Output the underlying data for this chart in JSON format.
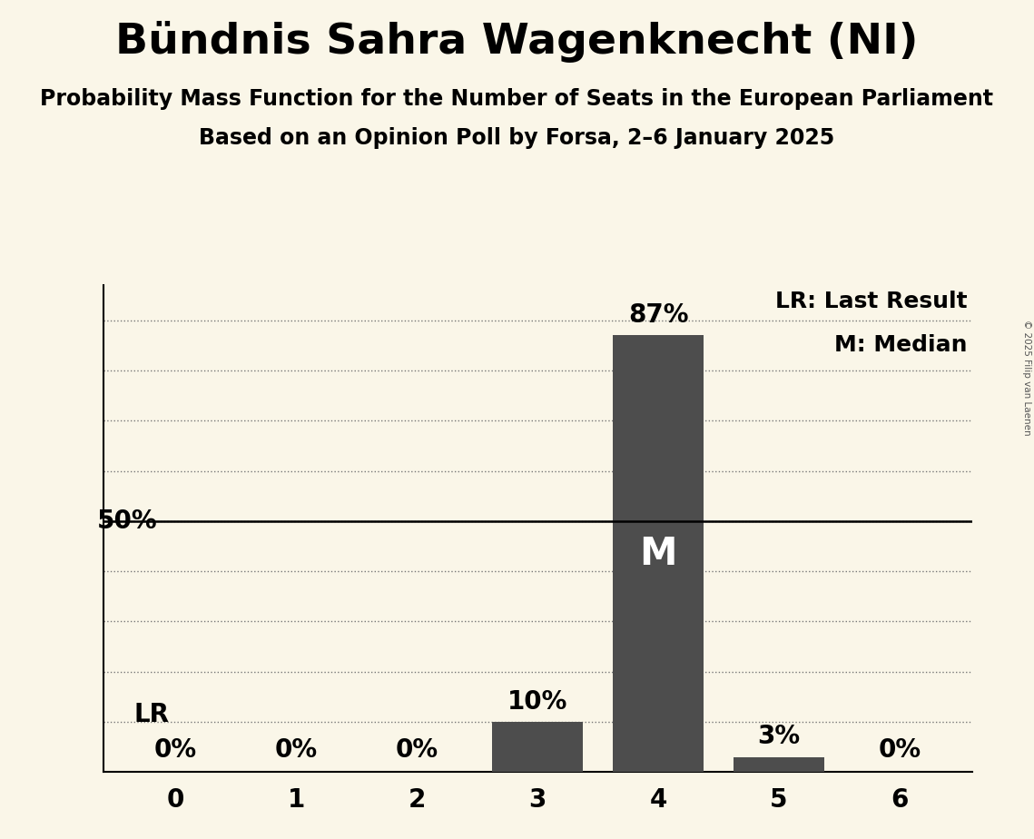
{
  "title": "Bündnis Sahra Wagenknecht (NI)",
  "subtitle1": "Probability Mass Function for the Number of Seats in the European Parliament",
  "subtitle2": "Based on an Opinion Poll by Forsa, 2–6 January 2025",
  "copyright": "© 2025 Filip van Laenen",
  "categories": [
    0,
    1,
    2,
    3,
    4,
    5,
    6
  ],
  "values": [
    0,
    0,
    0,
    10,
    87,
    3,
    0
  ],
  "bar_color": "#4d4d4d",
  "background_color": "#faf6e8",
  "median_seat": 4,
  "last_result_seat": 0,
  "legend_lr": "LR: Last Result",
  "legend_m": "M: Median",
  "yticks": [
    0,
    10,
    20,
    30,
    40,
    50,
    60,
    70,
    80,
    90
  ],
  "ylim": [
    0,
    97
  ],
  "title_fontsize": 34,
  "subtitle_fontsize": 17,
  "axis_tick_fontsize": 20,
  "bar_label_fontsize": 20,
  "legend_fontsize": 18,
  "fifty_label_fontsize": 20,
  "lr_label_fontsize": 20,
  "m_label_fontsize": 30
}
